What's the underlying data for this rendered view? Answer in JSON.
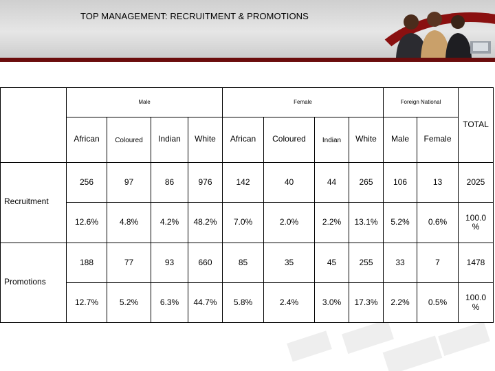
{
  "slide": {
    "title": "TOP MANAGEMENT: RECRUITMENT & PROMOTIONS",
    "accent_color": "#6b0d0d"
  },
  "table": {
    "groups": {
      "male": "Male",
      "female": "Female",
      "foreign": "Foreign National",
      "total": "TOTAL"
    },
    "columns": [
      "African",
      "Coloured",
      "Indian",
      "White",
      "African",
      "Coloured",
      "Indian",
      "White",
      "Male",
      "Female"
    ],
    "rows": [
      {
        "label": "Recruitment",
        "counts": [
          "256",
          "97",
          "86",
          "976",
          "142",
          "40",
          "44",
          "265",
          "106",
          "13",
          "2025"
        ],
        "percents": [
          "12.6%",
          "4.8%",
          "4.2%",
          "48.2%",
          "7.0%",
          "2.0%",
          "2.2%",
          "13.1%",
          "5.2%",
          "0.6%",
          "100.0 %"
        ]
      },
      {
        "label": "Promotions",
        "counts": [
          "188",
          "77",
          "93",
          "660",
          "85",
          "35",
          "45",
          "255",
          "33",
          "7",
          "1478"
        ],
        "percents": [
          "12.7%",
          "5.2%",
          "6.3%",
          "44.7%",
          "5.8%",
          "2.4%",
          "3.0%",
          "17.3%",
          "2.2%",
          "0.5%",
          "100.0 %"
        ]
      }
    ]
  }
}
